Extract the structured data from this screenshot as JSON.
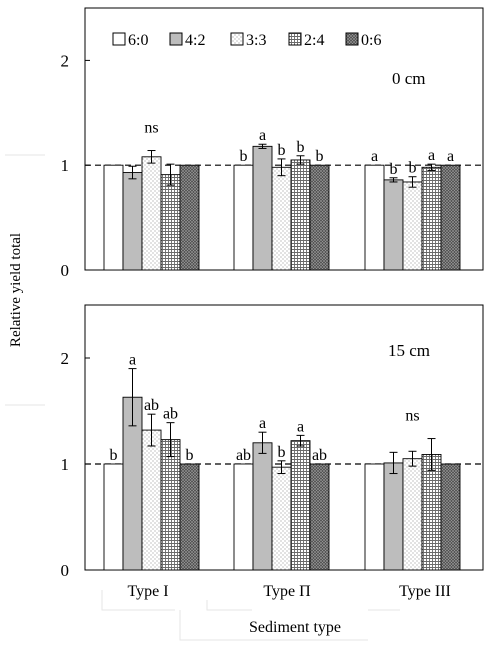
{
  "chart_data": {
    "type": "bar",
    "ylabel": "Relative yield total",
    "xlabel": "Sediment type",
    "categories": [
      "Type I",
      "Type Π",
      "Type III"
    ],
    "ylim": [
      0,
      2.5
    ],
    "yticks": [
      0,
      1,
      2
    ],
    "reference_line": 1,
    "grid": false,
    "legend_position": "top-left",
    "legend": [
      "6:0",
      "4:2",
      "3:3",
      "2:4",
      "0:6"
    ],
    "series_styles": [
      {
        "fill": "#ffffff",
        "pattern": "none"
      },
      {
        "fill": "#bdbdbd",
        "pattern": "none"
      },
      {
        "fill": "#ffffff",
        "pattern": "dots"
      },
      {
        "fill": "#ffffff",
        "pattern": "grid"
      },
      {
        "fill": "#6e6e6e",
        "pattern": "crosshatch"
      }
    ],
    "panels": [
      {
        "label": "0 cm",
        "series": [
          {
            "name": "6:0",
            "values": [
              1.0,
              1.0,
              1.0
            ],
            "errors": [
              0.0,
              0.0,
              0.0
            ],
            "letters": [
              "",
              "b",
              "a"
            ]
          },
          {
            "name": "4:2",
            "values": [
              0.93,
              1.18,
              0.86
            ],
            "errors": [
              0.06,
              0.02,
              0.02
            ],
            "letters": [
              "",
              "a",
              "b"
            ]
          },
          {
            "name": "3:3",
            "values": [
              1.08,
              0.98,
              0.84
            ],
            "errors": [
              0.06,
              0.08,
              0.05
            ],
            "letters": [
              "",
              "b",
              "b"
            ]
          },
          {
            "name": "2:4",
            "values": [
              0.91,
              1.05,
              0.98
            ],
            "errors": [
              0.1,
              0.04,
              0.03
            ],
            "letters": [
              "",
              "b",
              "a"
            ]
          },
          {
            "name": "0:6",
            "values": [
              1.0,
              1.0,
              1.0
            ],
            "errors": [
              0.0,
              0.0,
              0.0
            ],
            "letters": [
              "",
              "b",
              "a"
            ]
          }
        ],
        "annotations": [
          {
            "text": "ns",
            "category": "Type I"
          }
        ]
      },
      {
        "label": "15 cm",
        "series": [
          {
            "name": "6:0",
            "values": [
              1.0,
              1.0,
              1.0
            ],
            "errors": [
              0.0,
              0.0,
              0.0
            ],
            "letters": [
              "b",
              "ab",
              ""
            ]
          },
          {
            "name": "4:2",
            "values": [
              1.63,
              1.2,
              1.01
            ],
            "errors": [
              0.27,
              0.1,
              0.1
            ],
            "letters": [
              "a",
              "a",
              ""
            ]
          },
          {
            "name": "3:3",
            "values": [
              1.32,
              0.97,
              1.05
            ],
            "errors": [
              0.15,
              0.06,
              0.07
            ],
            "letters": [
              "ab",
              "b",
              ""
            ]
          },
          {
            "name": "2:4",
            "values": [
              1.23,
              1.22,
              1.09
            ],
            "errors": [
              0.16,
              0.05,
              0.15
            ],
            "letters": [
              "ab",
              "a",
              ""
            ]
          },
          {
            "name": "0:6",
            "values": [
              1.0,
              1.0,
              1.0
            ],
            "errors": [
              0.0,
              0.0,
              0.0
            ],
            "letters": [
              "b",
              "ab",
              ""
            ]
          }
        ],
        "annotations": [
          {
            "text": "ns",
            "category": "Type III"
          }
        ]
      }
    ]
  }
}
